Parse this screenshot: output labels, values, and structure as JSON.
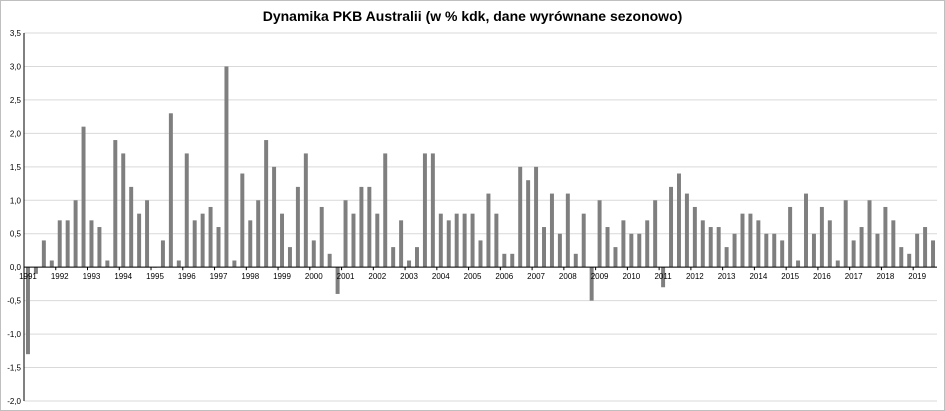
{
  "chart_data": {
    "type": "bar",
    "title": "Dynamika PKB Australii (w % kdk, dane wyrównane sezonowo)",
    "xlabel": "",
    "ylabel": "",
    "ylim": [
      -2.0,
      3.5
    ],
    "yticks": [
      "-2,0",
      "-1,5",
      "-1,0",
      "-0,5",
      "0,0",
      "0,5",
      "1,0",
      "1,5",
      "2,0",
      "2,5",
      "3,0",
      "3,5"
    ],
    "grid": "horizontal",
    "legend": "none",
    "colors": {
      "bar": "#7f7f7f",
      "grid": "#d9d9d9",
      "axis": "#000000"
    },
    "years": [
      "1991",
      "1992",
      "1993",
      "1994",
      "1995",
      "1996",
      "1997",
      "1998",
      "1999",
      "2000",
      "2001",
      "2002",
      "2003",
      "2004",
      "2005",
      "2006",
      "2007",
      "2008",
      "2009",
      "2010",
      "2011",
      "2012",
      "2013",
      "2014",
      "2015",
      "2016",
      "2017",
      "2018",
      "2019"
    ],
    "values": [
      -1.3,
      -0.1,
      0.4,
      0.1,
      0.7,
      0.7,
      1.0,
      2.1,
      0.7,
      0.6,
      0.1,
      1.9,
      1.7,
      1.2,
      0.8,
      1.0,
      0.0,
      0.4,
      2.3,
      0.1,
      1.7,
      0.7,
      0.8,
      0.9,
      0.6,
      3.0,
      0.1,
      1.4,
      0.7,
      1.0,
      1.9,
      1.5,
      0.8,
      0.3,
      1.2,
      1.7,
      0.4,
      0.9,
      0.2,
      -0.4,
      1.0,
      0.8,
      1.2,
      1.2,
      0.8,
      1.7,
      0.3,
      0.7,
      0.1,
      0.3,
      1.7,
      1.7,
      0.8,
      0.7,
      0.8,
      0.8,
      0.8,
      0.4,
      1.1,
      0.8,
      0.2,
      0.2,
      1.5,
      1.3,
      1.5,
      0.6,
      1.1,
      0.5,
      1.1,
      0.2,
      0.8,
      -0.5,
      1.0,
      0.6,
      0.3,
      0.7,
      0.5,
      0.5,
      0.7,
      1.0,
      -0.3,
      1.2,
      1.4,
      1.1,
      0.9,
      0.7,
      0.6,
      0.6,
      0.3,
      0.5,
      0.8,
      0.8,
      0.7,
      0.5,
      0.5,
      0.4,
      0.9,
      0.1,
      1.1,
      0.5,
      0.9,
      0.7,
      0.1,
      1.0,
      0.4,
      0.6,
      1.0,
      0.5,
      0.9,
      0.7,
      0.3,
      0.2,
      0.5,
      0.6,
      0.4
    ]
  }
}
